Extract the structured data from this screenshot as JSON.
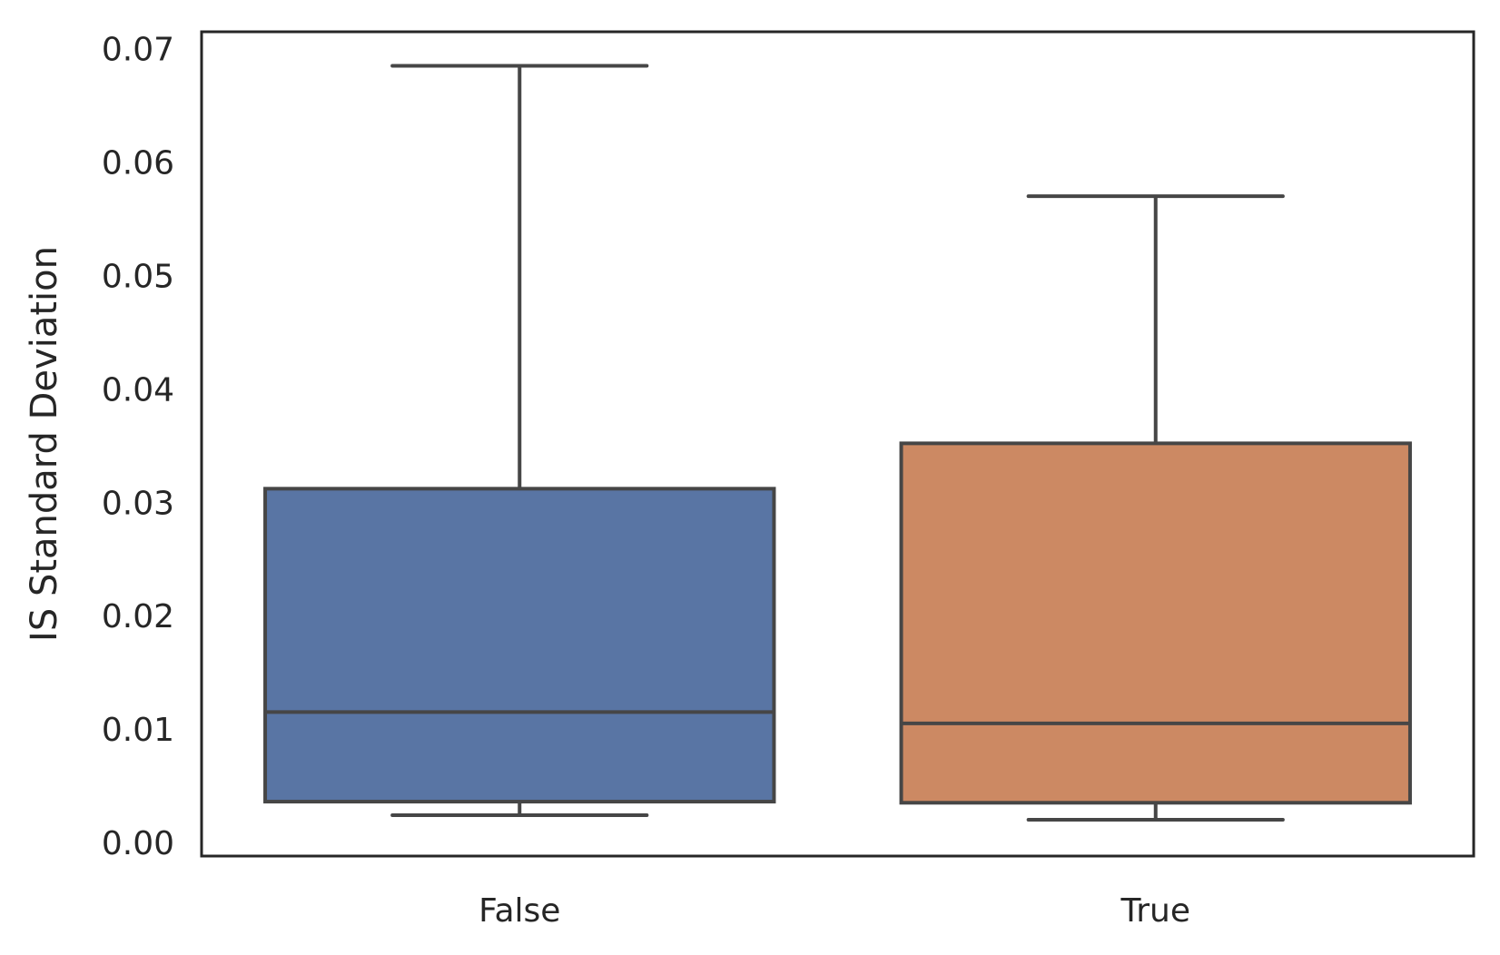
{
  "chart_data": {
    "type": "box",
    "title": "",
    "xlabel": "",
    "ylabel": "IS Standard Deviation",
    "ylim": [
      -0.0012,
      0.0715
    ],
    "yticks": [
      0.0,
      0.01,
      0.02,
      0.03,
      0.04,
      0.05,
      0.06,
      0.07
    ],
    "ytick_labels": [
      "0.00",
      "0.01",
      "0.02",
      "0.03",
      "0.04",
      "0.05",
      "0.06",
      "0.07"
    ],
    "categories": [
      "False",
      "True"
    ],
    "boxes": [
      {
        "category": "False",
        "whisker_low": 0.0024,
        "q1": 0.0036,
        "median": 0.0115,
        "q3": 0.0312,
        "whisker_high": 0.0685,
        "color": "#5975a4"
      },
      {
        "category": "True",
        "whisker_low": 0.002,
        "q1": 0.0035,
        "median": 0.0105,
        "q3": 0.0352,
        "whisker_high": 0.057,
        "color": "#cc8963"
      }
    ],
    "grid": false,
    "legend": "none",
    "line_color": "#464646",
    "frame_color": "#262626"
  }
}
